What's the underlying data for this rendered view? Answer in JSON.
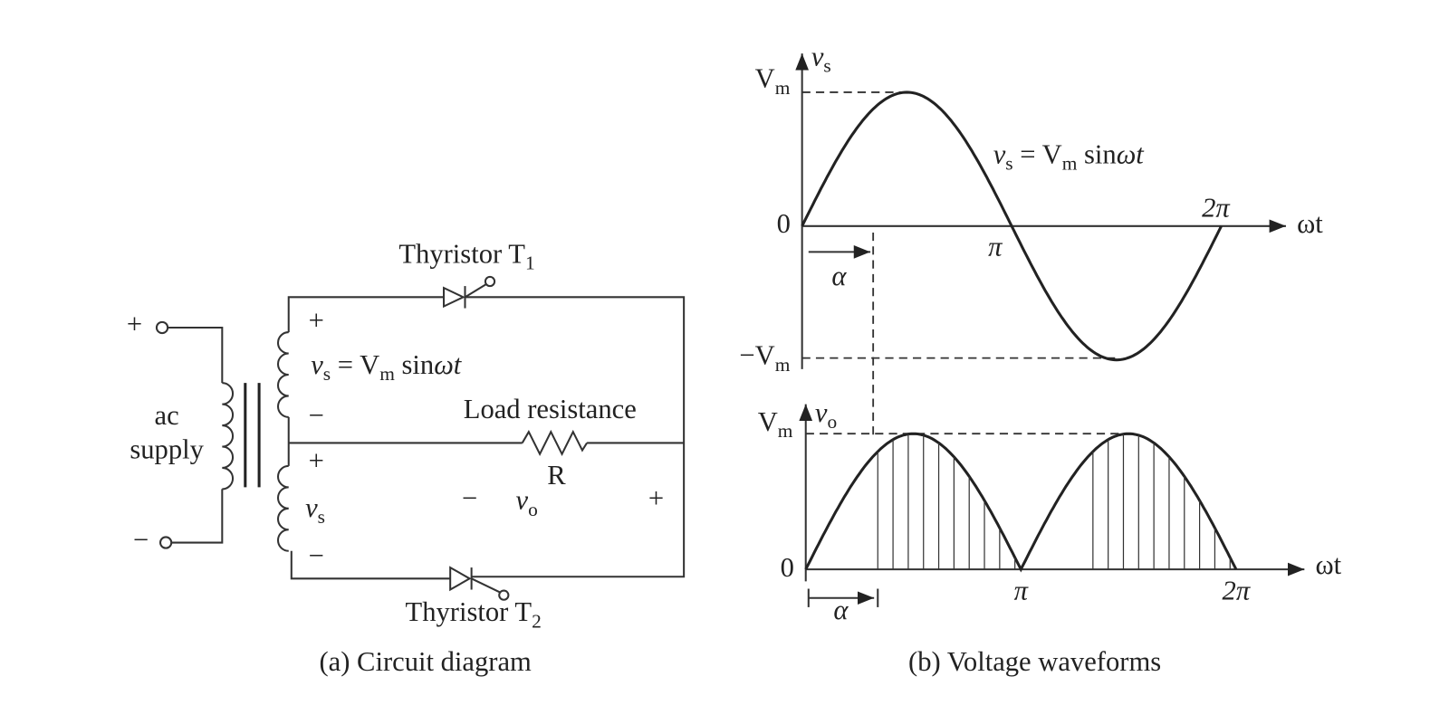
{
  "circuit": {
    "input_plus": "+",
    "input_minus": "−",
    "source_label": [
      "ac",
      "supply"
    ],
    "thyristor_1": {
      "name": "Thyristor T",
      "subscript": "1"
    },
    "thyristor_2": {
      "name": "Thyristor T",
      "subscript": "2"
    },
    "upper_winding": {
      "plus": "+",
      "minus": "−",
      "label": [
        "v",
        "s",
        " = V",
        "m",
        " sin",
        "ωt"
      ]
    },
    "lower_winding": {
      "plus": "+",
      "minus": "−",
      "label": [
        "v",
        "s"
      ]
    },
    "load": {
      "title": "Load resistance",
      "symbol": "R",
      "minus": "−",
      "voltage": [
        "v",
        "o"
      ],
      "plus": "+"
    },
    "caption": "(a) Circuit diagram"
  },
  "waveforms": {
    "supply": {
      "axis_label": [
        "v",
        "s"
      ],
      "positive_peak": [
        "V",
        "m"
      ],
      "negative_peak": [
        "−V",
        "m"
      ],
      "origin": "0",
      "half_period": "π",
      "full_period": "2π",
      "x_axis": "ωt",
      "firing_angle": "α",
      "equation": [
        "v",
        "s",
        " = V",
        "m",
        " sin",
        "ωt"
      ]
    },
    "output": {
      "axis_label": [
        "v",
        "o"
      ],
      "peak": [
        "V",
        "m"
      ],
      "origin": "0",
      "half_period": "π",
      "full_period": "2π",
      "x_axis": "ωt",
      "firing_angle": "α"
    },
    "caption": "(b) Voltage waveforms"
  }
}
